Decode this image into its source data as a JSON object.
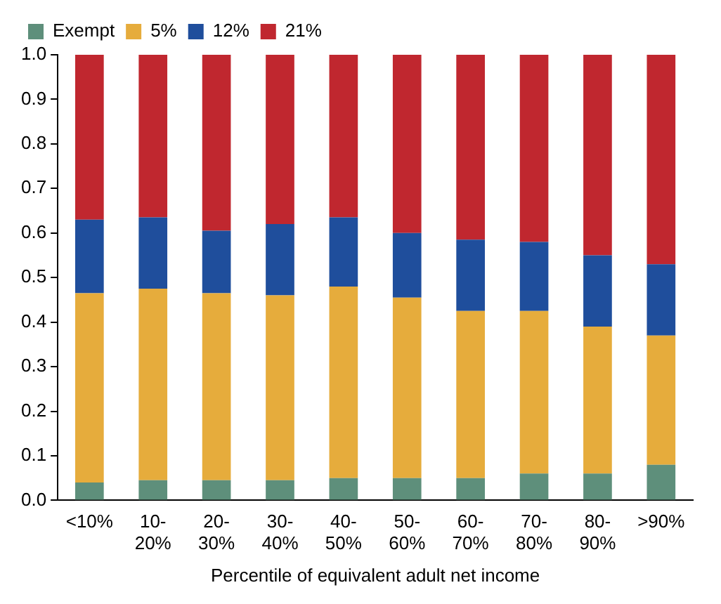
{
  "chart_data": {
    "type": "bar",
    "stacked": true,
    "xlabel": "Percentile of equivalent adult net income",
    "categories": [
      "<10%",
      "10-\n20%",
      "20-\n30%",
      "30-\n40%",
      "40-\n50%",
      "50-\n60%",
      "60-\n70%",
      "70-\n80%",
      "80-\n90%",
      ">90%"
    ],
    "series": [
      {
        "name": "Exempt",
        "color": "#5e8f7b",
        "values": [
          0.04,
          0.045,
          0.045,
          0.045,
          0.05,
          0.05,
          0.05,
          0.06,
          0.06,
          0.08
        ]
      },
      {
        "name": "5%",
        "color": "#e6ac3c",
        "values": [
          0.425,
          0.43,
          0.42,
          0.415,
          0.43,
          0.405,
          0.375,
          0.365,
          0.33,
          0.29
        ]
      },
      {
        "name": "12%",
        "color": "#1f4e9c",
        "values": [
          0.165,
          0.16,
          0.14,
          0.16,
          0.155,
          0.145,
          0.16,
          0.155,
          0.16,
          0.16
        ]
      },
      {
        "name": "21%",
        "color": "#c0272f",
        "values": [
          0.37,
          0.365,
          0.395,
          0.38,
          0.365,
          0.4,
          0.415,
          0.42,
          0.45,
          0.47
        ]
      }
    ],
    "ylim": [
      0,
      1
    ],
    "yticks": [
      {
        "value": 0,
        "label": "0.0"
      },
      {
        "value": 0.1,
        "label": "0.1"
      },
      {
        "value": 0.2,
        "label": "0.2"
      },
      {
        "value": 0.3,
        "label": "0.3"
      },
      {
        "value": 0.4,
        "label": "0.4"
      },
      {
        "value": 0.5,
        "label": "0.5"
      },
      {
        "value": 0.6,
        "label": "0.6"
      },
      {
        "value": 0.7,
        "label": "0.7"
      },
      {
        "value": 0.8,
        "label": "0.8"
      },
      {
        "value": 0.9,
        "label": "0.9"
      },
      {
        "value": 1,
        "label": "1.0"
      }
    ],
    "grid": false,
    "legend": "top left"
  }
}
